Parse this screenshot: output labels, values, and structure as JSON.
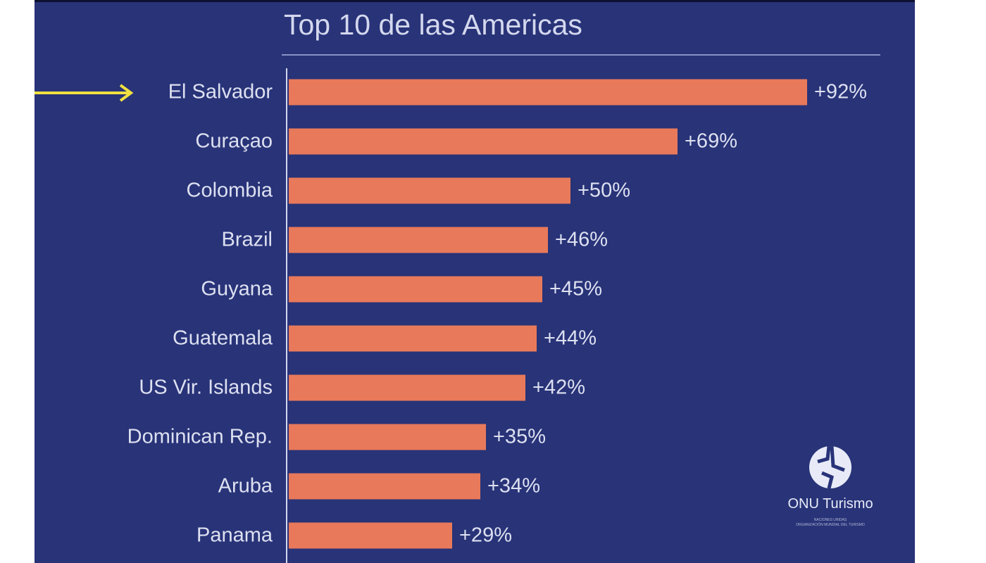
{
  "chart_data": {
    "type": "bar",
    "orientation": "horizontal",
    "title": "Top 10 de las Americas",
    "categories": [
      "El Salvador",
      "Curaçao",
      "Colombia",
      "Brazil",
      "Guyana",
      "Guatemala",
      "US Vir. Islands",
      "Dominican Rep.",
      "Aruba",
      "Panama"
    ],
    "values": [
      92,
      69,
      50,
      46,
      45,
      44,
      42,
      35,
      34,
      29
    ],
    "value_labels": [
      "+92%",
      "+69%",
      "+50%",
      "+46%",
      "+45%",
      "+44%",
      "+42%",
      "+35%",
      "+34%",
      "+29%"
    ],
    "xlim": [
      0,
      100
    ],
    "highlight": "El Salvador",
    "colors": {
      "bar": "#e8795a",
      "background": "#283378",
      "arrow": "#f0e040"
    }
  },
  "logo": {
    "name": "ONU Turismo",
    "sub1": "NACIONES UNIDAS",
    "sub2": "ORGANIZACIÓN MUNDIAL DEL TURISMO"
  }
}
